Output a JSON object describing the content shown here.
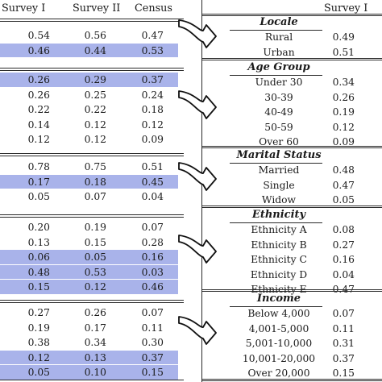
{
  "headers": {
    "left": [
      "Survey I",
      "Survey II",
      "Census"
    ],
    "right": "Survey I"
  },
  "left_groups": [
    {
      "rows": [
        [
          "0.54",
          "0.56",
          "0.47"
        ],
        [
          "0.46",
          "0.44",
          "0.53"
        ]
      ],
      "highlight": [
        1
      ]
    },
    {
      "rows": [
        [
          "0.26",
          "0.29",
          "0.37"
        ],
        [
          "0.26",
          "0.25",
          "0.24"
        ],
        [
          "0.22",
          "0.22",
          "0.18"
        ],
        [
          "0.14",
          "0.12",
          "0.12"
        ],
        [
          "0.12",
          "0.12",
          "0.09"
        ]
      ],
      "highlight": [
        0
      ]
    },
    {
      "rows": [
        [
          "0.78",
          "0.75",
          "0.51"
        ],
        [
          "0.17",
          "0.18",
          "0.45"
        ],
        [
          "0.05",
          "0.07",
          "0.04"
        ]
      ],
      "highlight": [
        1
      ]
    },
    {
      "rows": [
        [
          "0.20",
          "0.19",
          "0.07"
        ],
        [
          "0.13",
          "0.15",
          "0.28"
        ],
        [
          "0.06",
          "0.05",
          "0.16"
        ],
        [
          "0.48",
          "0.53",
          "0.03"
        ],
        [
          "0.15",
          "0.12",
          "0.46"
        ]
      ],
      "highlight": [
        2,
        3,
        4
      ]
    },
    {
      "rows": [
        [
          "0.27",
          "0.26",
          "0.07"
        ],
        [
          "0.19",
          "0.17",
          "0.11"
        ],
        [
          "0.38",
          "0.34",
          "0.30"
        ],
        [
          "0.12",
          "0.13",
          "0.37"
        ],
        [
          "0.05",
          "0.10",
          "0.15"
        ]
      ],
      "highlight": [
        3,
        4
      ]
    }
  ],
  "right_groups": [
    {
      "title": "Locale",
      "rows": [
        [
          "Rural",
          "0.49"
        ],
        [
          "Urban",
          "0.51"
        ]
      ]
    },
    {
      "title": "Age Group",
      "rows": [
        [
          "Under 30",
          "0.34"
        ],
        [
          "30-39",
          "0.26"
        ],
        [
          "40-49",
          "0.19"
        ],
        [
          "50-59",
          "0.12"
        ],
        [
          "Over 60",
          "0.09"
        ]
      ]
    },
    {
      "title": "Marital Status",
      "rows": [
        [
          "Married",
          "0.48"
        ],
        [
          "Single",
          "0.47"
        ],
        [
          "Widow",
          "0.05"
        ]
      ]
    },
    {
      "title": "Ethnicity",
      "rows": [
        [
          "Ethnicity A",
          "0.08"
        ],
        [
          "Ethnicity B",
          "0.27"
        ],
        [
          "Ethnicity C",
          "0.16"
        ],
        [
          "Ethnicity D",
          "0.04"
        ],
        [
          "Ethnicity E",
          "0.47"
        ]
      ]
    },
    {
      "title": "Income",
      "rows": [
        [
          "Below 4,000",
          "0.07"
        ],
        [
          "4,001-5,000",
          "0.11"
        ],
        [
          "5,001-10,000",
          "0.31"
        ],
        [
          "10,001-20,000",
          "0.37"
        ],
        [
          "Over 20,000",
          "0.15"
        ]
      ]
    }
  ],
  "colors": {
    "highlight": "#a9b3ea",
    "rule": "#2a2a2a",
    "text": "#1a1a1a"
  }
}
